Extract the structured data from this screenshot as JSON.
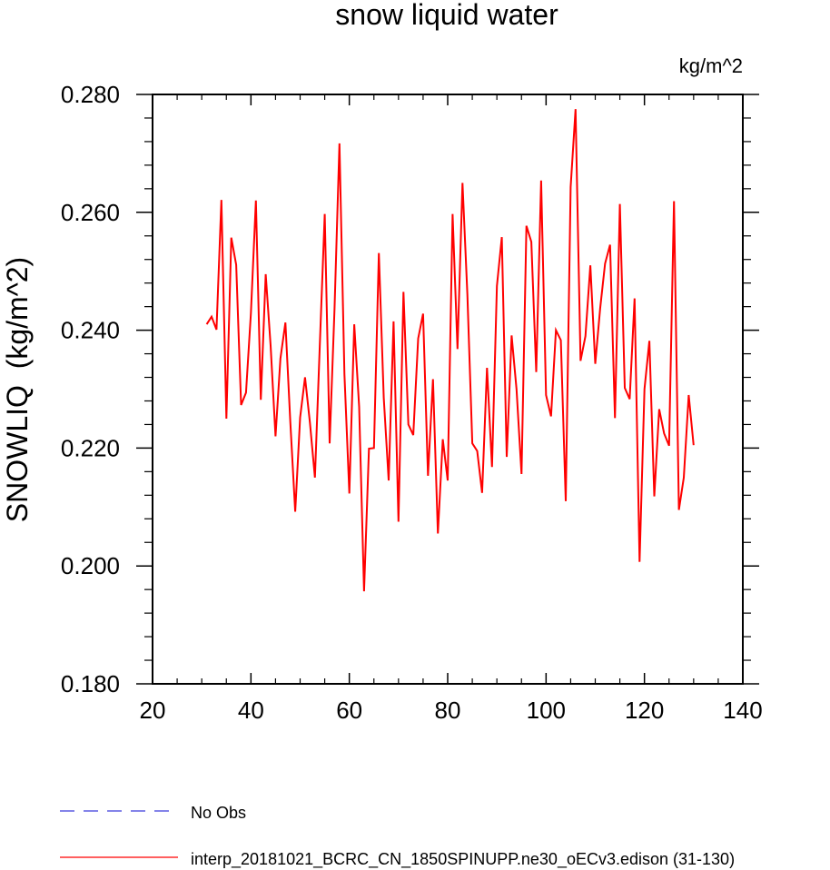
{
  "chart_data": {
    "type": "line",
    "title": "snow liquid water",
    "units": "kg/m^2",
    "xlabel": "",
    "ylabel": "SNOWLIQ  (kg/m^2)",
    "xlim": [
      20,
      140
    ],
    "ylim": [
      0.18,
      0.28
    ],
    "xticks": [
      20,
      40,
      60,
      80,
      100,
      120,
      140
    ],
    "xtick_labels": [
      "20",
      "40",
      "60",
      "80",
      "100",
      "120",
      "140"
    ],
    "yticks": [
      0.18,
      0.2,
      0.22,
      0.24,
      0.26,
      0.28
    ],
    "ytick_labels": [
      "0.180",
      "0.200",
      "0.220",
      "0.240",
      "0.260",
      "0.280"
    ],
    "grid": false,
    "legend_position": "bottom-left",
    "series": [
      {
        "name": "interp_20181021_BCRC_CN_1850SPINUPP.ne30_oECv3.edison (31-130)",
        "color": "#ff0000",
        "style": "solid",
        "x": [
          31,
          32,
          33,
          34,
          35,
          36,
          37,
          38,
          39,
          40,
          41,
          42,
          43,
          44,
          45,
          46,
          47,
          48,
          49,
          50,
          51,
          52,
          53,
          54,
          55,
          56,
          57,
          58,
          59,
          60,
          61,
          62,
          63,
          64,
          65,
          66,
          67,
          68,
          69,
          70,
          71,
          72,
          73,
          74,
          75,
          76,
          77,
          78,
          79,
          80,
          81,
          82,
          83,
          84,
          85,
          86,
          87,
          88,
          89,
          90,
          91,
          92,
          93,
          94,
          95,
          96,
          97,
          98,
          99,
          100,
          101,
          102,
          103,
          104,
          105,
          106,
          107,
          108,
          109,
          110,
          111,
          112,
          113,
          114,
          115,
          116,
          117,
          118,
          119,
          120,
          121,
          122,
          123,
          124,
          125,
          126,
          127,
          128,
          129,
          130
        ],
        "y": [
          0.241,
          0.2423,
          0.2401,
          0.2621,
          0.225,
          0.2557,
          0.2511,
          0.2273,
          0.2294,
          0.2429,
          0.262,
          0.2282,
          0.2495,
          0.2374,
          0.222,
          0.2352,
          0.2413,
          0.2244,
          0.2092,
          0.2252,
          0.232,
          0.2243,
          0.215,
          0.2376,
          0.2597,
          0.2208,
          0.2437,
          0.2717,
          0.2325,
          0.2123,
          0.241,
          0.227,
          0.1957,
          0.2199,
          0.22,
          0.2531,
          0.2285,
          0.2145,
          0.2415,
          0.2075,
          0.2465,
          0.224,
          0.2222,
          0.2386,
          0.2428,
          0.2153,
          0.2317,
          0.2055,
          0.2215,
          0.2145,
          0.2597,
          0.2368,
          0.265,
          0.246,
          0.2208,
          0.2195,
          0.2124,
          0.2336,
          0.2168,
          0.2475,
          0.2558,
          0.2185,
          0.2391,
          0.23,
          0.2156,
          0.2577,
          0.255,
          0.2329,
          0.2654,
          0.229,
          0.2254,
          0.24,
          0.2383,
          0.211,
          0.2643,
          0.2775,
          0.2348,
          0.239,
          0.251,
          0.2343,
          0.2437,
          0.2513,
          0.2545,
          0.2251,
          0.2614,
          0.2302,
          0.2283,
          0.2454,
          0.2007,
          0.23,
          0.2382,
          0.2118,
          0.2266,
          0.2225,
          0.2204,
          0.2619,
          0.2095,
          0.215,
          0.229,
          0.2205
        ]
      }
    ]
  },
  "legend": [
    {
      "label": "No Obs",
      "color": "#3b3bdc",
      "style": "dashed"
    },
    {
      "label": "interp_20181021_BCRC_CN_1850SPINUPP.ne30_oECv3.edison (31-130)",
      "color": "#ff0000",
      "style": "solid"
    }
  ]
}
